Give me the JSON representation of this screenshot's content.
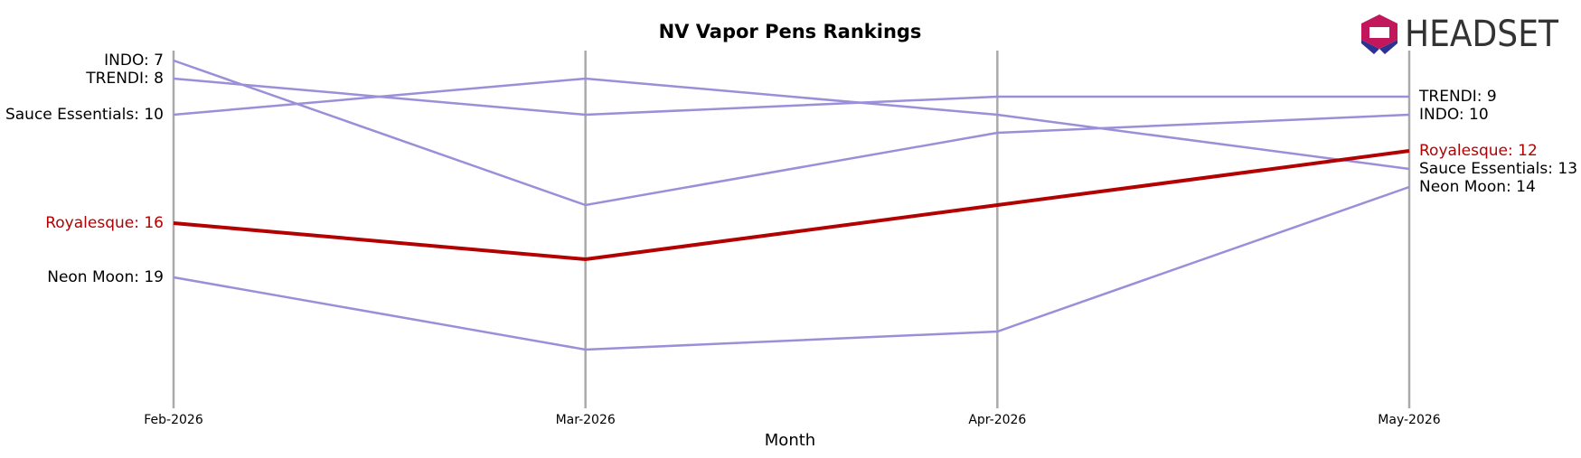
{
  "logo_text": "HEADSET",
  "chart_data": {
    "type": "line",
    "title": "NV Vapor Pens Rankings",
    "x_label": "Month",
    "categories": [
      "Feb-2026",
      "Mar-2026",
      "Apr-2026",
      "May-2026"
    ],
    "ylim": [
      6,
      24
    ],
    "inverted_y": true,
    "grid": true,
    "series": [
      {
        "name": "INDO",
        "color": "#9a8fd8",
        "values": [
          7,
          15,
          11,
          10
        ],
        "value_labels": [
          "INDO: 7",
          null,
          null,
          "INDO: 10"
        ]
      },
      {
        "name": "TRENDI",
        "color": "#9a8fd8",
        "values": [
          8,
          10,
          9,
          9
        ],
        "value_labels": [
          "TRENDI: 8",
          null,
          null,
          "TRENDI: 9"
        ]
      },
      {
        "name": "Sauce Essentials",
        "color": "#9a8fd8",
        "values": [
          10,
          8,
          10,
          13
        ],
        "value_labels": [
          "Sauce Essentials: 10",
          null,
          null,
          "Sauce Essentials: 13"
        ]
      },
      {
        "name": "Royalesque",
        "color": "#b30000",
        "highlight": true,
        "values": [
          16,
          18,
          15,
          12
        ],
        "value_labels": [
          "Royalesque: 16",
          null,
          null,
          "Royalesque: 12"
        ]
      },
      {
        "name": "Neon Moon",
        "color": "#9a8fd8",
        "values": [
          19,
          23,
          22,
          14
        ],
        "value_labels": [
          "Neon Moon: 19",
          null,
          null,
          "Neon Moon: 14"
        ]
      }
    ]
  }
}
